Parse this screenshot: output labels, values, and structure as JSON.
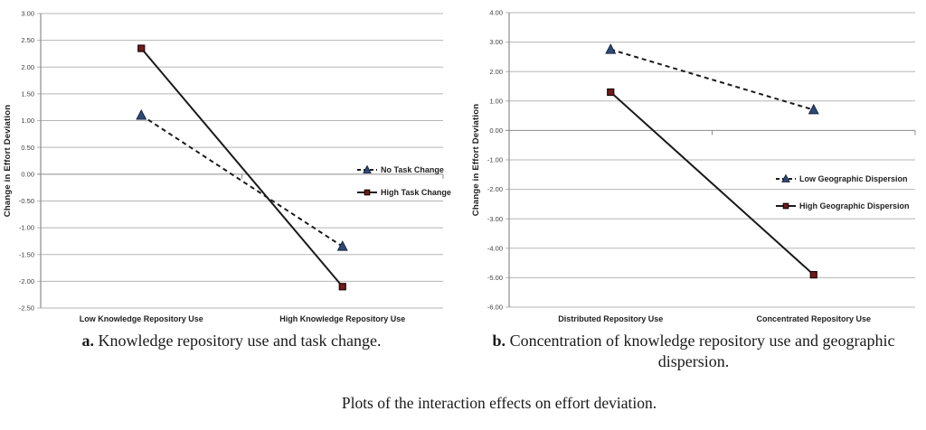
{
  "page": {
    "caption_a": {
      "label": "a.",
      "text": " Knowledge repository use and task change."
    },
    "caption_b": {
      "label": "b.",
      "text": " Concentration of knowledge repository use and geographic dispersion."
    },
    "figure_caption": "Plots of the interaction effects on effort deviation."
  },
  "colors": {
    "gridline": "#b5b5b5",
    "zero_axis": "#8c8c8c",
    "y_axis": "#8c8c8c",
    "line_black": "#1a1a1a",
    "triangle_fill": "#2e4a77",
    "triangle_edge": "#16233f",
    "square_fill": "#701b1b",
    "square_edge": "#1c0606"
  },
  "chart_data": [
    {
      "type": "line",
      "title": "",
      "xlabel": "",
      "ylabel": "Change in Effort Deviation",
      "categories": [
        "Low Knowledge Repository Use",
        "High Knowledge Repository Use"
      ],
      "ylim": [
        -2.5,
        3.0
      ],
      "ystep": 0.5,
      "grid": true,
      "legend_position": "inside-right-middle",
      "series": [
        {
          "name": "No Task Change",
          "values": [
            1.1,
            -1.35
          ],
          "line": "dashed",
          "marker": "triangle"
        },
        {
          "name": "High Task Change",
          "values": [
            2.35,
            -2.1
          ],
          "line": "solid",
          "marker": "square"
        }
      ]
    },
    {
      "type": "line",
      "title": "",
      "xlabel": "",
      "ylabel": "Change in Effort Deviation",
      "categories": [
        "Distributed Repository Use",
        "Concentrated Repository Use"
      ],
      "ylim": [
        -6.0,
        4.0
      ],
      "ystep": 1.0,
      "grid": true,
      "legend_position": "inside-right-middle",
      "series": [
        {
          "name": "Low Geographic Dispersion",
          "values": [
            2.75,
            0.7
          ],
          "line": "dashed",
          "marker": "triangle"
        },
        {
          "name": "High Geographic Dispersion",
          "values": [
            1.3,
            -4.9
          ],
          "line": "solid",
          "marker": "square"
        }
      ]
    }
  ]
}
